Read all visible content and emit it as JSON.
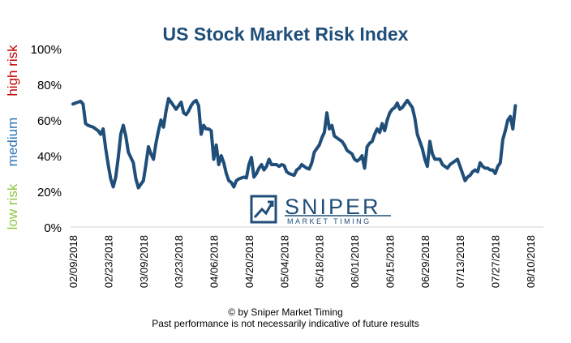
{
  "chart_data": {
    "type": "line",
    "title": "US Stock Market Risk Index",
    "ylim": [
      0,
      100
    ],
    "yticks": [
      "0%",
      "20%",
      "40%",
      "60%",
      "80%",
      "100%"
    ],
    "xtick_labels": [
      "02/09/2018",
      "02/23/2018",
      "03/09/2018",
      "03/23/2018",
      "04/06/2018",
      "04/20/2018",
      "05/04/2018",
      "05/18/2018",
      "06/01/2018",
      "06/15/2018",
      "06/29/2018",
      "07/13/2018",
      "07/27/2018",
      "08/10/2018"
    ],
    "side_labels": [
      {
        "text": "low risk",
        "color": "#8dc63f"
      },
      {
        "text": "medium",
        "color": "#2e75b6"
      },
      {
        "text": "high risk",
        "color": "#c00000"
      }
    ],
    "line_color": "#1f4e79",
    "grid": false,
    "series": [
      {
        "values": [
          [
            "02/09/2018",
            69
          ],
          [
            "02/10/2018",
            69.5
          ],
          [
            "02/11/2018",
            70
          ],
          [
            "02/12/2018",
            70.5
          ],
          [
            "02/13/2018",
            69
          ],
          [
            "02/14/2018",
            58
          ],
          [
            "02/15/2018",
            57
          ],
          [
            "02/16/2018",
            56.5
          ],
          [
            "02/17/2018",
            56
          ],
          [
            "02/18/2018",
            55
          ],
          [
            "02/19/2018",
            54
          ],
          [
            "02/20/2018",
            52
          ],
          [
            "02/21/2018",
            55
          ],
          [
            "02/22/2018",
            44
          ],
          [
            "02/23/2018",
            35
          ],
          [
            "02/24/2018",
            27
          ],
          [
            "02/25/2018",
            22.5
          ],
          [
            "02/26/2018",
            28
          ],
          [
            "02/27/2018",
            39
          ],
          [
            "02/28/2018",
            52
          ],
          [
            "03/01/2018",
            57
          ],
          [
            "03/02/2018",
            51
          ],
          [
            "03/03/2018",
            42
          ],
          [
            "03/04/2018",
            39
          ],
          [
            "03/05/2018",
            36
          ],
          [
            "03/06/2018",
            27
          ],
          [
            "03/07/2018",
            22
          ],
          [
            "03/08/2018",
            24
          ],
          [
            "03/09/2018",
            26
          ],
          [
            "03/10/2018",
            35
          ],
          [
            "03/11/2018",
            45
          ],
          [
            "03/12/2018",
            41
          ],
          [
            "03/13/2018",
            38
          ],
          [
            "03/14/2018",
            47
          ],
          [
            "03/15/2018",
            54
          ],
          [
            "03/16/2018",
            60
          ],
          [
            "03/17/2018",
            56
          ],
          [
            "03/18/2018",
            65
          ],
          [
            "03/19/2018",
            72
          ],
          [
            "03/20/2018",
            70
          ],
          [
            "03/21/2018",
            68
          ],
          [
            "03/22/2018",
            66
          ],
          [
            "03/23/2018",
            68
          ],
          [
            "03/24/2018",
            70
          ],
          [
            "03/25/2018",
            64
          ],
          [
            "03/26/2018",
            63
          ],
          [
            "03/27/2018",
            65
          ],
          [
            "03/28/2018",
            68
          ],
          [
            "03/29/2018",
            70
          ],
          [
            "03/30/2018",
            71
          ],
          [
            "03/31/2018",
            68
          ],
          [
            "04/01/2018",
            52
          ],
          [
            "04/02/2018",
            57
          ],
          [
            "04/03/2018",
            55
          ],
          [
            "04/04/2018",
            55
          ],
          [
            "04/05/2018",
            54
          ],
          [
            "04/06/2018",
            38
          ],
          [
            "04/07/2018",
            46
          ],
          [
            "04/08/2018",
            35
          ],
          [
            "04/09/2018",
            40
          ],
          [
            "04/10/2018",
            36
          ],
          [
            "04/11/2018",
            30
          ],
          [
            "04/12/2018",
            26
          ],
          [
            "04/13/2018",
            25
          ],
          [
            "04/14/2018",
            22.5
          ],
          [
            "04/15/2018",
            26
          ],
          [
            "04/16/2018",
            27
          ],
          [
            "04/17/2018",
            27.5
          ],
          [
            "04/18/2018",
            28
          ],
          [
            "04/19/2018",
            27.5
          ],
          [
            "04/20/2018",
            35
          ],
          [
            "04/21/2018",
            39
          ],
          [
            "04/22/2018",
            28
          ],
          [
            "04/23/2018",
            30
          ],
          [
            "04/24/2018",
            33
          ],
          [
            "04/25/2018",
            35
          ],
          [
            "04/26/2018",
            32
          ],
          [
            "04/27/2018",
            34
          ],
          [
            "04/28/2018",
            38
          ],
          [
            "04/29/2018",
            35
          ],
          [
            "04/30/2018",
            35
          ],
          [
            "05/01/2018",
            35
          ],
          [
            "05/02/2018",
            34
          ],
          [
            "05/03/2018",
            35
          ],
          [
            "05/04/2018",
            34.5
          ],
          [
            "05/05/2018",
            31
          ],
          [
            "05/06/2018",
            30
          ],
          [
            "05/07/2018",
            29.5
          ],
          [
            "05/08/2018",
            29
          ],
          [
            "05/09/2018",
            32
          ],
          [
            "05/10/2018",
            33
          ],
          [
            "05/11/2018",
            35
          ],
          [
            "05/12/2018",
            34
          ],
          [
            "05/13/2018",
            33
          ],
          [
            "05/14/2018",
            32.5
          ],
          [
            "05/15/2018",
            36
          ],
          [
            "05/16/2018",
            42
          ],
          [
            "05/17/2018",
            44
          ],
          [
            "05/18/2018",
            46
          ],
          [
            "05/19/2018",
            50
          ],
          [
            "05/20/2018",
            53
          ],
          [
            "05/21/2018",
            64
          ],
          [
            "05/22/2018",
            55
          ],
          [
            "05/23/2018",
            57
          ],
          [
            "05/24/2018",
            51
          ],
          [
            "05/25/2018",
            50
          ],
          [
            "05/26/2018",
            49
          ],
          [
            "05/27/2018",
            48
          ],
          [
            "05/28/2018",
            46
          ],
          [
            "05/29/2018",
            43
          ],
          [
            "05/30/2018",
            42
          ],
          [
            "05/31/2018",
            41
          ],
          [
            "06/01/2018",
            38
          ],
          [
            "06/02/2018",
            37
          ],
          [
            "06/03/2018",
            38
          ],
          [
            "06/04/2018",
            40
          ],
          [
            "06/05/2018",
            33
          ],
          [
            "06/06/2018",
            45
          ],
          [
            "06/07/2018",
            47
          ],
          [
            "06/08/2018",
            48
          ],
          [
            "06/09/2018",
            52
          ],
          [
            "06/10/2018",
            55
          ],
          [
            "06/11/2018",
            53
          ],
          [
            "06/12/2018",
            58
          ],
          [
            "06/13/2018",
            54
          ],
          [
            "06/14/2018",
            60
          ],
          [
            "06/15/2018",
            64
          ],
          [
            "06/16/2018",
            66
          ],
          [
            "06/17/2018",
            67
          ],
          [
            "06/18/2018",
            69.5
          ],
          [
            "06/19/2018",
            66
          ],
          [
            "06/20/2018",
            67
          ],
          [
            "06/21/2018",
            69
          ],
          [
            "06/22/2018",
            71
          ],
          [
            "06/23/2018",
            69
          ],
          [
            "06/24/2018",
            67
          ],
          [
            "06/25/2018",
            61
          ],
          [
            "06/26/2018",
            52
          ],
          [
            "06/27/2018",
            48
          ],
          [
            "06/28/2018",
            44
          ],
          [
            "06/29/2018",
            38
          ],
          [
            "06/30/2018",
            34
          ],
          [
            "07/01/2018",
            48
          ],
          [
            "07/02/2018",
            41
          ],
          [
            "07/03/2018",
            38
          ],
          [
            "07/04/2018",
            38
          ],
          [
            "07/05/2018",
            38
          ],
          [
            "07/06/2018",
            35
          ],
          [
            "07/07/2018",
            34
          ],
          [
            "07/08/2018",
            33
          ],
          [
            "07/09/2018",
            35
          ],
          [
            "07/10/2018",
            36
          ],
          [
            "07/11/2018",
            37
          ],
          [
            "07/12/2018",
            38
          ],
          [
            "07/13/2018",
            34
          ],
          [
            "07/14/2018",
            30
          ],
          [
            "07/15/2018",
            26
          ],
          [
            "07/16/2018",
            28
          ],
          [
            "07/17/2018",
            29
          ],
          [
            "07/18/2018",
            31
          ],
          [
            "07/19/2018",
            32
          ],
          [
            "07/20/2018",
            31
          ],
          [
            "07/21/2018",
            36
          ],
          [
            "07/22/2018",
            34
          ],
          [
            "07/23/2018",
            33
          ],
          [
            "07/24/2018",
            33
          ],
          [
            "07/25/2018",
            32
          ],
          [
            "07/26/2018",
            32
          ],
          [
            "07/27/2018",
            30
          ],
          [
            "07/28/2018",
            34
          ],
          [
            "07/29/2018",
            36
          ],
          [
            "07/30/2018",
            49
          ],
          [
            "07/31/2018",
            54
          ],
          [
            "08/01/2018",
            60
          ],
          [
            "08/02/2018",
            62
          ],
          [
            "08/03/2018",
            55
          ],
          [
            "08/04/2018",
            68
          ]
        ]
      }
    ]
  },
  "logo": {
    "line1": "SNIPER",
    "line2": "MARKET TIMING",
    "color": "#1f4e79"
  },
  "footer": {
    "line1": "© by Sniper Market Timing",
    "line2": "Past performance is not necessarily indicative of future results"
  }
}
